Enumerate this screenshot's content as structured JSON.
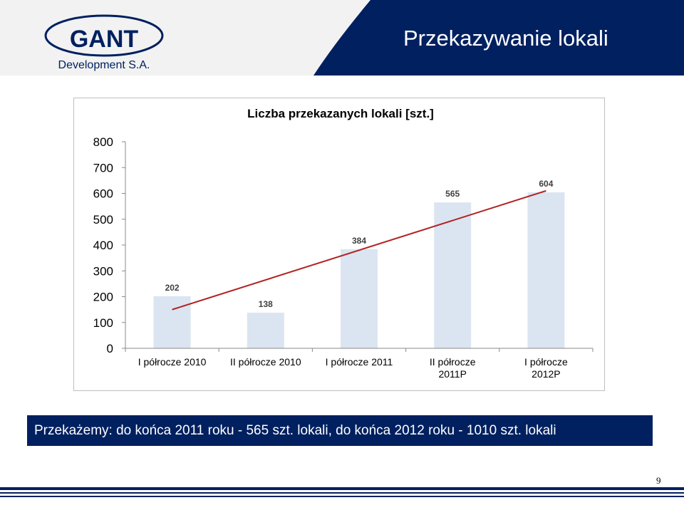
{
  "header": {
    "title": "Przekazywanie lokali",
    "logo_main": "GANT",
    "logo_sub": "Development S.A."
  },
  "colors": {
    "navy": "#002060",
    "bar": "#dbe5f1",
    "trend": "#b22222"
  },
  "chart_data": {
    "type": "bar",
    "title": "Liczba przekazanych lokali [szt.]",
    "categories": [
      [
        "I półrocze 2010"
      ],
      [
        "II półrocze 2010"
      ],
      [
        "I półrocze 2011"
      ],
      [
        "II półrocze",
        "2011P"
      ],
      [
        "I półrocze",
        "2012P"
      ]
    ],
    "values": [
      202,
      138,
      384,
      565,
      604
    ],
    "data_labels": [
      "202",
      "138",
      "384",
      "565",
      "604"
    ],
    "yticks": [
      "0",
      "100",
      "200",
      "300",
      "400",
      "500",
      "600",
      "700",
      "800"
    ],
    "ylim": [
      0,
      800
    ],
    "grid": false,
    "legend": "none",
    "trendline": {
      "from_index": 0,
      "to_index": 4,
      "from_value": 150,
      "to_value": 610
    }
  },
  "banner": {
    "text": "Przekażemy: do końca 2011 roku - 565 szt. lokali, do końca 2012 roku - 1010 szt. lokali"
  },
  "footer": {
    "page_number": "9"
  }
}
